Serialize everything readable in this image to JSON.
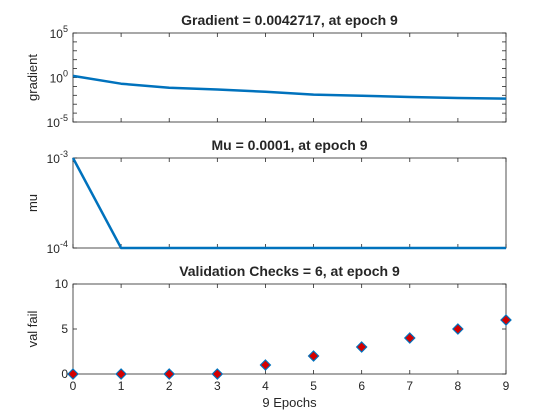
{
  "chart_data": [
    {
      "type": "line",
      "title": "Gradient = 0.0042717, at epoch 9",
      "ylabel": "gradient",
      "xlabel": "",
      "yscale": "log",
      "ylim_exponent": [
        -5,
        5
      ],
      "xlim": [
        0,
        9
      ],
      "ytick_exponents": [
        5,
        0,
        -5
      ],
      "show_xticklabels": false,
      "color": "#0072BD",
      "x": [
        0,
        1,
        2,
        3,
        4,
        5,
        6,
        7,
        8,
        9
      ],
      "values": [
        1.5,
        0.2,
        0.07,
        0.045,
        0.025,
        0.012,
        0.009,
        0.0065,
        0.005,
        0.0042717
      ]
    },
    {
      "type": "line",
      "title": "Mu = 0.0001, at epoch 9",
      "ylabel": "mu",
      "xlabel": "",
      "yscale": "log",
      "ylim_exponent": [
        -4,
        -3
      ],
      "xlim": [
        0,
        9
      ],
      "ytick_exponents": [
        -3,
        -4
      ],
      "show_xticklabels": false,
      "color": "#0072BD",
      "x": [
        0,
        1,
        2,
        3,
        4,
        5,
        6,
        7,
        8,
        9
      ],
      "values": [
        0.001,
        0.0001,
        0.0001,
        0.0001,
        0.0001,
        0.0001,
        0.0001,
        0.0001,
        0.0001,
        0.0001
      ]
    },
    {
      "type": "scatter",
      "title": "Validation Checks = 6, at epoch 9",
      "ylabel": "val fail",
      "xlabel": "9 Epochs",
      "yscale": "linear",
      "ylim": [
        0,
        10
      ],
      "xlim": [
        0,
        9
      ],
      "yticks": [
        0,
        5,
        10
      ],
      "xticks": [
        0,
        1,
        2,
        3,
        4,
        5,
        6,
        7,
        8,
        9
      ],
      "show_xticklabels": true,
      "marker": "diamond",
      "marker_face": "#D40000",
      "marker_edge": "#0072BD",
      "x": [
        0,
        1,
        2,
        3,
        4,
        5,
        6,
        7,
        8,
        9
      ],
      "values": [
        0,
        0,
        0,
        0,
        1,
        2,
        3,
        4,
        5,
        6
      ]
    }
  ]
}
